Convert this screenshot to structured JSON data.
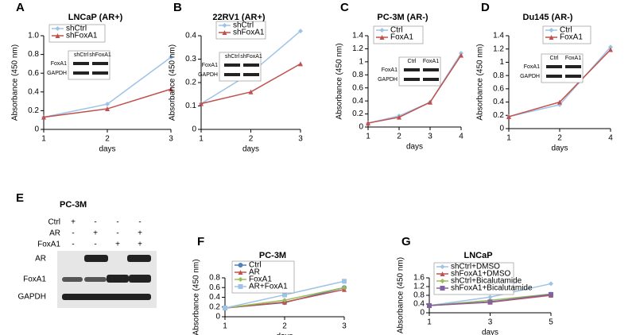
{
  "chart_data": [
    {
      "type": "line",
      "panel_label": "A",
      "title": "LNCaP (AR+)",
      "x_label": "days",
      "y_label": "Absorbance (450 nm)",
      "categories": [
        "1",
        "2",
        "3"
      ],
      "ylim": [
        0,
        1
      ],
      "yticks": [
        0,
        0.2,
        0.4,
        0.6,
        0.8,
        {
          "value": 1,
          "label": "1.0"
        }
      ],
      "series": [
        {
          "name": "shCtrl",
          "color": "#9dc3e6",
          "marker": "diamond",
          "values": [
            0.13,
            0.27,
            0.77
          ]
        },
        {
          "name": "shFoxA1",
          "color": "#c0504d",
          "marker": "triangle",
          "values": [
            0.13,
            0.22,
            0.43
          ]
        }
      ],
      "inset": {
        "columns": [
          "shCtrl",
          "shFoxA1"
        ],
        "rows": [
          "FoxA1",
          "GAPDH"
        ]
      }
    },
    {
      "type": "line",
      "panel_label": "B",
      "title": "22RV1  (AR+)",
      "x_label": "days",
      "y_label": "Absorbance (450 nm)",
      "categories": [
        "1",
        "2",
        "3"
      ],
      "ylim": [
        0,
        0.4
      ],
      "yticks": [
        0,
        0.1,
        0.2,
        0.3,
        0.4
      ],
      "series": [
        {
          "name": "shCtrl",
          "color": "#9dc3e6",
          "marker": "diamond",
          "values": [
            0.11,
            0.24,
            0.42
          ]
        },
        {
          "name": "shFoxA1",
          "color": "#c0504d",
          "marker": "triangle",
          "values": [
            0.11,
            0.16,
            0.28
          ]
        }
      ],
      "inset": {
        "columns": [
          "shCtrl",
          "shFoxA1"
        ],
        "rows": [
          "FoxA1",
          "GAPDH"
        ]
      }
    },
    {
      "type": "line",
      "panel_label": "C",
      "title": "PC-3M  (AR-)",
      "x_label": "days",
      "y_label": "Absorbance (450 nm)",
      "categories": [
        "1",
        "2",
        "3",
        "4"
      ],
      "ylim": [
        0,
        1.4
      ],
      "yticks": [
        0,
        0.2,
        0.4,
        0.6,
        0.8,
        1,
        1.2,
        1.4
      ],
      "series": [
        {
          "name": "Ctrl",
          "color": "#9dc3e6",
          "marker": "diamond",
          "values": [
            0.06,
            0.17,
            0.38,
            1.13
          ]
        },
        {
          "name": "FoxA1",
          "color": "#c0504d",
          "marker": "triangle",
          "values": [
            0.06,
            0.15,
            0.38,
            1.1
          ]
        }
      ],
      "inset": {
        "columns": [
          "Ctrl",
          "FoxA1"
        ],
        "rows": [
          "FoxA1",
          "GAPDH"
        ]
      }
    },
    {
      "type": "line",
      "panel_label": "D",
      "title": "Du145  (AR-)",
      "x_label": "days",
      "y_label": "Absorbance (450 nm)",
      "categories": [
        "1",
        "2",
        "4"
      ],
      "ylim": [
        0,
        1.4
      ],
      "yticks": [
        0,
        0.2,
        0.4,
        0.6,
        0.8,
        1,
        1.2,
        1.4
      ],
      "series": [
        {
          "name": "Ctrl",
          "color": "#9dc3e6",
          "marker": "diamond",
          "values": [
            0.18,
            0.36,
            1.23
          ]
        },
        {
          "name": "FoxA1",
          "color": "#c0504d",
          "marker": "triangle",
          "values": [
            0.18,
            0.4,
            1.19
          ]
        }
      ],
      "inset": {
        "columns": [
          "Ctrl",
          "FoxA1"
        ],
        "rows": [
          "FoxA1",
          "GAPDH"
        ]
      }
    },
    {
      "type": "line",
      "panel_label": "F",
      "title": "PC-3M",
      "x_label": "days",
      "y_label": "Absorbance (450 nm)",
      "categories": [
        "1",
        "2",
        "3"
      ],
      "ylim": [
        0,
        0.8
      ],
      "yticks": [
        0,
        0.2,
        0.4,
        0.6,
        0.8
      ],
      "series": [
        {
          "name": "Ctrl",
          "color": "#4f81bd",
          "marker": "circle",
          "values": [
            0.18,
            0.29,
            0.6
          ]
        },
        {
          "name": "AR",
          "color": "#c0504d",
          "marker": "triangle",
          "values": [
            0.18,
            0.3,
            0.56
          ]
        },
        {
          "name": "FoxA1",
          "color": "#9bbb59",
          "marker": "diamond",
          "values": [
            0.18,
            0.34,
            0.6
          ]
        },
        {
          "name": "AR+FoxA1",
          "color": "#9dc3e6",
          "marker": "square",
          "values": [
            0.18,
            0.45,
            0.73
          ]
        }
      ]
    },
    {
      "type": "line",
      "panel_label": "G",
      "title": "LNCaP",
      "x_label": "days",
      "y_label": "Absorbance (450 nm)",
      "categories": [
        "1",
        "3",
        "5"
      ],
      "ylim": [
        0,
        1.6
      ],
      "yticks": [
        0,
        0.4,
        0.8,
        1.2,
        1.6
      ],
      "series": [
        {
          "name": "shCtrl+DMSO",
          "color": "#9dc3e6",
          "marker": "diamond",
          "values": [
            0.33,
            0.72,
            1.33
          ]
        },
        {
          "name": "shFoxA1+DMSO",
          "color": "#c0504d",
          "marker": "triangle",
          "values": [
            0.33,
            0.48,
            0.8
          ]
        },
        {
          "name": "shCtrl+Bicalutamide",
          "color": "#9bbb59",
          "marker": "diamond",
          "values": [
            0.33,
            0.57,
            0.86
          ]
        },
        {
          "name": "shFoxA1+Bicalutamide",
          "color": "#8064a2",
          "marker": "square",
          "values": [
            0.33,
            0.5,
            0.84
          ]
        }
      ]
    }
  ],
  "blot": {
    "panel_label": "E",
    "title": "PC-3M",
    "conditions": [
      {
        "name": "Ctrl",
        "marks": [
          "+",
          "-",
          "-",
          "-"
        ]
      },
      {
        "name": "AR",
        "marks": [
          "-",
          "+",
          "-",
          "+"
        ]
      },
      {
        "name": "FoxA1",
        "marks": [
          "-",
          "-",
          "+",
          "+"
        ]
      }
    ],
    "bands": [
      "AR",
      "FoxA1",
      "GAPDH"
    ]
  }
}
